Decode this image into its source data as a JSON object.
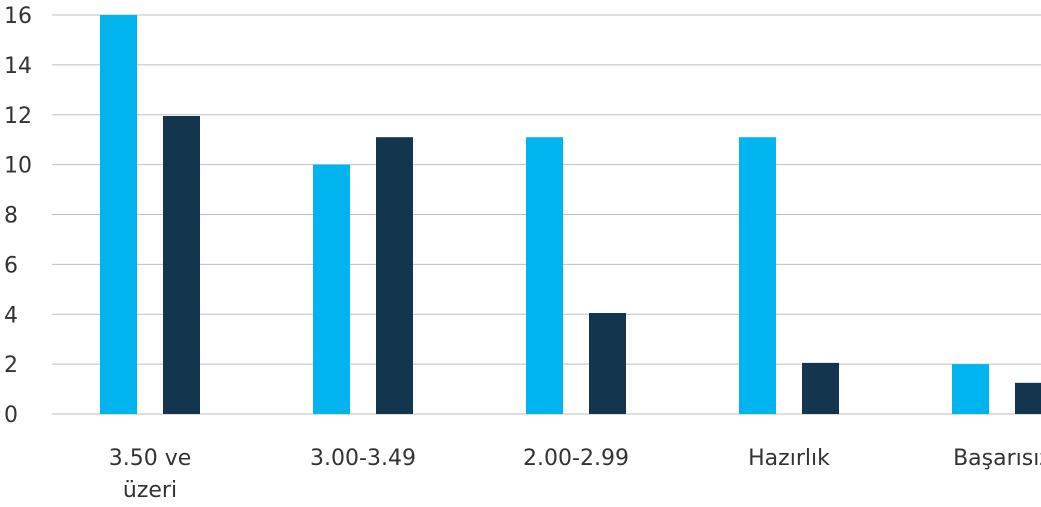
{
  "chart_data": {
    "type": "bar",
    "categories": [
      [
        "3.50 ve",
        "üzeri"
      ],
      [
        "3.00-3.49"
      ],
      [
        "2.00-2.99"
      ],
      [
        "Hazırlık"
      ],
      [
        "Başarısız"
      ]
    ],
    "series": [
      {
        "values": [
          16,
          10,
          11.1,
          11.1,
          2
        ],
        "color": "#00B5EF"
      },
      {
        "values": [
          11.95,
          11.1,
          4.05,
          2.05,
          1.25
        ],
        "color": "#13354D"
      }
    ],
    "y_ticks": [
      "0",
      "2",
      "4",
      "6",
      "8",
      "10",
      "12",
      "14",
      "16"
    ],
    "ylim": [
      0,
      16
    ],
    "grid": true,
    "legend": "none",
    "title": "",
    "xlabel": "",
    "ylabel": ""
  }
}
